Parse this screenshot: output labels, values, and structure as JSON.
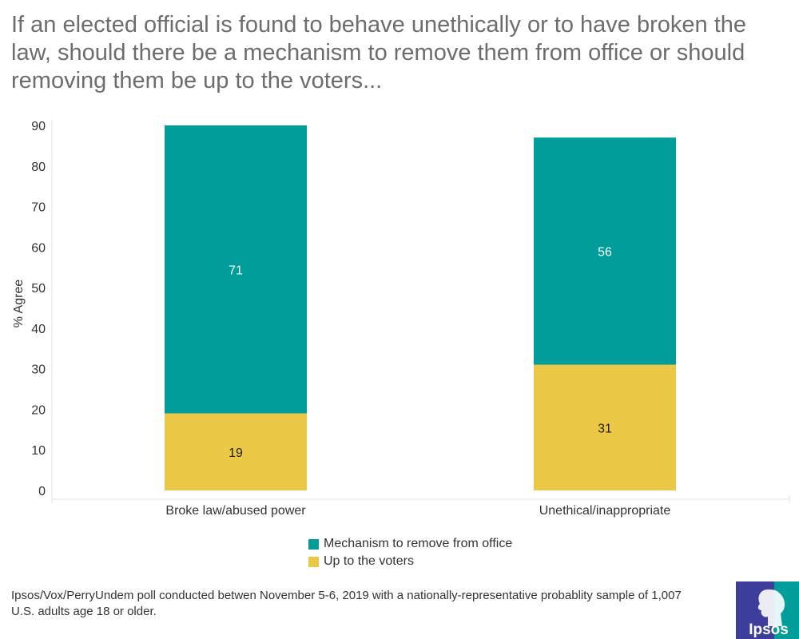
{
  "title": "If an elected official is found to behave unethically or to have broken the law, should there be a mechanism to remove them from office or should removing them be up to the voters...",
  "chart_data": {
    "type": "bar",
    "stacked": true,
    "categories": [
      "Broke law/abused power",
      "Unethical/inappropriate"
    ],
    "series": [
      {
        "name": "Up to the voters",
        "values": [
          19,
          31
        ],
        "color": "#ebc846",
        "label_color": "#222222"
      },
      {
        "name": "Mechanism to remove from office",
        "values": [
          71,
          56
        ],
        "color": "#009d9a",
        "label_color": "#ffffff"
      }
    ],
    "legend_order": [
      "Mechanism to remove from office",
      "Up to the voters"
    ],
    "ylabel": "% Agree",
    "xlabel": "",
    "ylim": [
      0,
      90
    ],
    "yticks": [
      0,
      10,
      20,
      30,
      40,
      50,
      60,
      70,
      80,
      90
    ],
    "grid": false,
    "legend_position": "bottom"
  },
  "footnote": "Ipsos/Vox/PerryUndem poll conducted betwen November 5-6, 2019 with a nationally-representative probablity sample of 1,007 U.S. adults age 18 or older.",
  "logo": {
    "text": "Ipsos",
    "colors": [
      "#3d3d9b",
      "#009d9a"
    ]
  }
}
